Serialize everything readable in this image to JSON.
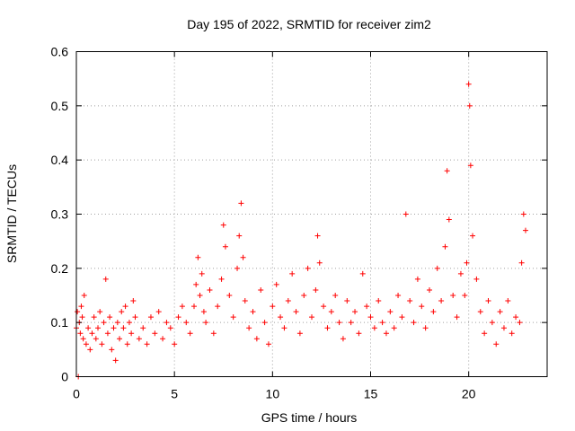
{
  "chart_data": {
    "type": "scatter",
    "title": "Day 195 of 2022, SRMTID for receiver zim2",
    "xlabel": "GPS time / hours",
    "ylabel": "SRMTID / TECUs",
    "xlim": [
      0,
      24
    ],
    "ylim": [
      0,
      0.6
    ],
    "xticks": [
      0,
      5,
      10,
      15,
      20
    ],
    "xtick_labels": [
      "0",
      "5",
      "10",
      "15",
      "20"
    ],
    "yticks": [
      0,
      0.1,
      0.2,
      0.3,
      0.4,
      0.5,
      0.6
    ],
    "ytick_labels": [
      "0",
      "0.1",
      "0.2",
      "0.3",
      "0.4",
      "0.5",
      "0.6"
    ],
    "grid": true,
    "marker": "+",
    "color": "#ff0000",
    "series": [
      {
        "name": "SRMTID",
        "x": [
          0.0,
          0.05,
          0.1,
          0.15,
          0.2,
          0.25,
          0.3,
          0.35,
          0.4,
          0.5,
          0.6,
          0.7,
          0.8,
          0.9,
          1.0,
          1.1,
          1.2,
          1.3,
          1.4,
          1.5,
          1.6,
          1.7,
          1.8,
          1.9,
          2.0,
          2.1,
          2.2,
          2.3,
          2.4,
          2.5,
          2.6,
          2.7,
          2.8,
          2.9,
          3.0,
          3.2,
          3.4,
          3.6,
          3.8,
          4.0,
          4.2,
          4.4,
          4.6,
          4.8,
          5.0,
          5.2,
          5.4,
          5.6,
          5.8,
          6.0,
          6.1,
          6.2,
          6.3,
          6.4,
          6.5,
          6.6,
          6.8,
          7.0,
          7.2,
          7.4,
          7.5,
          7.6,
          7.8,
          8.0,
          8.2,
          8.3,
          8.4,
          8.5,
          8.6,
          8.8,
          9.0,
          9.2,
          9.4,
          9.6,
          9.8,
          10.0,
          10.2,
          10.4,
          10.6,
          10.8,
          11.0,
          11.2,
          11.4,
          11.6,
          11.8,
          12.0,
          12.2,
          12.3,
          12.4,
          12.6,
          12.8,
          13.0,
          13.2,
          13.4,
          13.6,
          13.8,
          14.0,
          14.2,
          14.4,
          14.6,
          14.8,
          15.0,
          15.2,
          15.4,
          15.6,
          15.8,
          16.0,
          16.2,
          16.4,
          16.6,
          16.8,
          17.0,
          17.2,
          17.4,
          17.6,
          17.8,
          18.0,
          18.2,
          18.4,
          18.6,
          18.8,
          18.9,
          19.0,
          19.2,
          19.4,
          19.6,
          19.8,
          19.9,
          20.0,
          20.05,
          20.1,
          20.2,
          20.4,
          20.6,
          20.8,
          21.0,
          21.2,
          21.4,
          21.6,
          21.8,
          22.0,
          22.2,
          22.4,
          22.6,
          22.7,
          22.8,
          22.9
        ],
        "y": [
          0.09,
          0.12,
          0.0,
          0.1,
          0.08,
          0.13,
          0.11,
          0.07,
          0.15,
          0.06,
          0.09,
          0.05,
          0.08,
          0.11,
          0.07,
          0.09,
          0.12,
          0.06,
          0.1,
          0.18,
          0.08,
          0.11,
          0.05,
          0.09,
          0.03,
          0.1,
          0.07,
          0.12,
          0.09,
          0.13,
          0.06,
          0.1,
          0.08,
          0.14,
          0.11,
          0.07,
          0.09,
          0.06,
          0.11,
          0.08,
          0.12,
          0.07,
          0.1,
          0.09,
          0.06,
          0.11,
          0.13,
          0.1,
          0.08,
          0.13,
          0.17,
          0.22,
          0.15,
          0.19,
          0.12,
          0.1,
          0.16,
          0.08,
          0.13,
          0.18,
          0.28,
          0.24,
          0.15,
          0.11,
          0.2,
          0.26,
          0.32,
          0.22,
          0.14,
          0.09,
          0.12,
          0.07,
          0.16,
          0.1,
          0.06,
          0.13,
          0.17,
          0.11,
          0.09,
          0.14,
          0.19,
          0.12,
          0.08,
          0.15,
          0.2,
          0.11,
          0.16,
          0.26,
          0.21,
          0.13,
          0.09,
          0.12,
          0.15,
          0.1,
          0.07,
          0.14,
          0.1,
          0.12,
          0.08,
          0.19,
          0.13,
          0.11,
          0.09,
          0.14,
          0.1,
          0.08,
          0.12,
          0.09,
          0.15,
          0.11,
          0.3,
          0.14,
          0.1,
          0.18,
          0.13,
          0.09,
          0.16,
          0.12,
          0.2,
          0.14,
          0.24,
          0.38,
          0.29,
          0.15,
          0.11,
          0.19,
          0.15,
          0.21,
          0.54,
          0.5,
          0.39,
          0.26,
          0.18,
          0.12,
          0.08,
          0.14,
          0.1,
          0.06,
          0.12,
          0.09,
          0.14,
          0.08,
          0.11,
          0.1,
          0.21,
          0.3,
          0.27
        ]
      }
    ]
  }
}
